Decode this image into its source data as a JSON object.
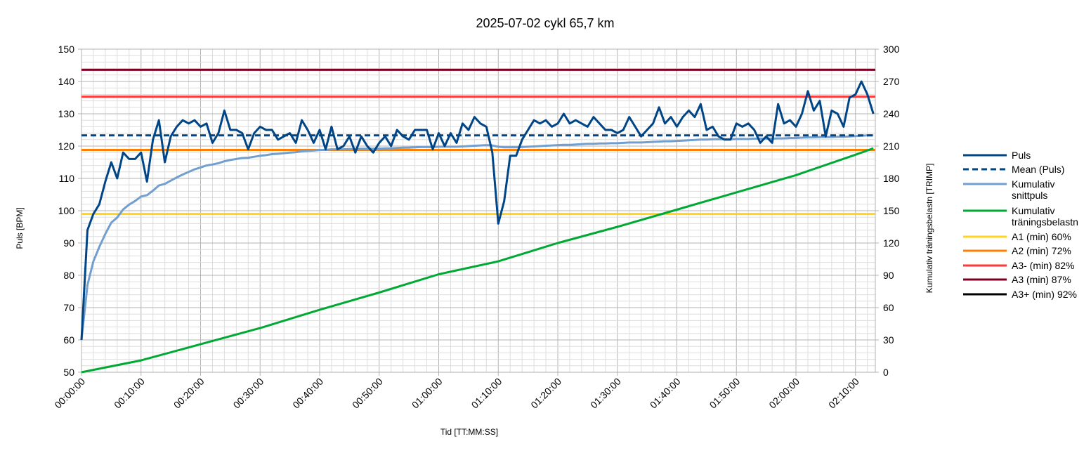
{
  "chart_data": {
    "type": "line",
    "title": "2025-07-02 cykl 65,7 km",
    "xlabel": "Tid [TT:MM:SS]",
    "ylabel": "Puls [BPM]",
    "y2label": "Kumulativ träningsbelastn [TRIMP]",
    "xlim": [
      0,
      8000
    ],
    "ylim": [
      50,
      150
    ],
    "y2lim": [
      0,
      300
    ],
    "x_ticks": [
      "00:00:00",
      "00:10:00",
      "00:20:00",
      "00:30:00",
      "00:40:00",
      "00:50:00",
      "01:00:00",
      "01:10:00",
      "01:20:00",
      "01:30:00",
      "01:40:00",
      "01:50:00",
      "02:00:00",
      "02:10:00"
    ],
    "y_ticks": [
      "50",
      "60",
      "70",
      "80",
      "90",
      "100",
      "110",
      "120",
      "130",
      "140",
      "150"
    ],
    "y2_ticks": [
      "0",
      "30",
      "60",
      "90",
      "120",
      "150",
      "180",
      "210",
      "240",
      "270",
      "300"
    ],
    "grid": true,
    "legend_position": "right",
    "series": [
      {
        "name": "Puls",
        "axis": "left",
        "color": "#004586",
        "style": "solid",
        "x": [
          0,
          60,
          120,
          180,
          240,
          300,
          360,
          420,
          480,
          540,
          600,
          660,
          720,
          780,
          840,
          900,
          960,
          1020,
          1080,
          1140,
          1200,
          1260,
          1320,
          1380,
          1440,
          1500,
          1560,
          1620,
          1680,
          1740,
          1800,
          1860,
          1920,
          1980,
          2040,
          2100,
          2160,
          2220,
          2280,
          2340,
          2400,
          2460,
          2520,
          2580,
          2640,
          2700,
          2760,
          2820,
          2880,
          2940,
          3000,
          3060,
          3120,
          3180,
          3240,
          3300,
          3360,
          3420,
          3480,
          3540,
          3600,
          3660,
          3720,
          3780,
          3840,
          3900,
          3960,
          4020,
          4080,
          4140,
          4200,
          4260,
          4320,
          4380,
          4440,
          4500,
          4560,
          4620,
          4680,
          4740,
          4800,
          4860,
          4920,
          4980,
          5040,
          5100,
          5160,
          5220,
          5280,
          5340,
          5400,
          5460,
          5520,
          5580,
          5640,
          5700,
          5760,
          5820,
          5880,
          5940,
          6000,
          6060,
          6120,
          6180,
          6240,
          6300,
          6360,
          6420,
          6480,
          6540,
          6600,
          6660,
          6720,
          6780,
          6840,
          6900,
          6960,
          7020,
          7080,
          7140,
          7200,
          7260,
          7320,
          7380,
          7440,
          7500,
          7560,
          7620,
          7680,
          7740,
          7800,
          7860,
          7920,
          7980
        ],
        "values": [
          60,
          94,
          99,
          102,
          109,
          115,
          110,
          118,
          116,
          116,
          118,
          109,
          122,
          128,
          115,
          123,
          126,
          128,
          127,
          128,
          126,
          127,
          121,
          124,
          131,
          125,
          125,
          124,
          119,
          124,
          126,
          125,
          125,
          122,
          123,
          124,
          121,
          128,
          125,
          121,
          125,
          119,
          126,
          119,
          120,
          123,
          118,
          123,
          120,
          118,
          121,
          123,
          120,
          125,
          123,
          122,
          125,
          125,
          125,
          119,
          124,
          120,
          124,
          121,
          127,
          125,
          129,
          127,
          126,
          118,
          96,
          103,
          117,
          117,
          122,
          125,
          128,
          127,
          128,
          126,
          127,
          130,
          127,
          128,
          127,
          126,
          129,
          127,
          125,
          125,
          124,
          125,
          129,
          126,
          123,
          125,
          127,
          132,
          127,
          129,
          126,
          129,
          131,
          129,
          133,
          125,
          126,
          123,
          122,
          122,
          127,
          126,
          127,
          125,
          121,
          123,
          121,
          133,
          127,
          128,
          126,
          130,
          137,
          131,
          134,
          123,
          131,
          130,
          126,
          135,
          136,
          140,
          136,
          130
        ]
      },
      {
        "name": "Mean (Puls)",
        "axis": "left",
        "color": "#004586",
        "style": "dashed",
        "x": [
          0,
          7980
        ],
        "values": [
          123.3,
          123.3
        ]
      },
      {
        "name": "Kumulativ snittpuls",
        "axis": "left",
        "color": "#729fcf",
        "style": "solid",
        "x": [
          0,
          60,
          120,
          180,
          240,
          300,
          360,
          420,
          480,
          540,
          600,
          660,
          720,
          780,
          840,
          900,
          960,
          1020,
          1080,
          1140,
          1200,
          1260,
          1320,
          1380,
          1440,
          1500,
          1560,
          1620,
          1680,
          1740,
          1800,
          1860,
          1920,
          1980,
          2040,
          2100,
          2160,
          2220,
          2280,
          2340,
          2400,
          2460,
          2520,
          2580,
          2640,
          2700,
          2760,
          2820,
          2880,
          2940,
          3000,
          3060,
          3120,
          3180,
          3240,
          3300,
          3360,
          3420,
          3480,
          3540,
          3600,
          3660,
          3720,
          3780,
          3840,
          3900,
          3960,
          4020,
          4080,
          4140,
          4200,
          4260,
          4320,
          4380,
          4440,
          4500,
          4560,
          4620,
          4680,
          4740,
          4800,
          4860,
          4920,
          4980,
          5040,
          5100,
          5160,
          5220,
          5280,
          5340,
          5400,
          5460,
          5520,
          5580,
          5640,
          5700,
          5760,
          5820,
          5880,
          5940,
          6000,
          6060,
          6120,
          6180,
          6240,
          6300,
          6360,
          6420,
          6480,
          6540,
          6600,
          6660,
          6720,
          6780,
          6840,
          6900,
          6960,
          7020,
          7080,
          7140,
          7200,
          7260,
          7320,
          7380,
          7440,
          7500,
          7560,
          7620,
          7680,
          7740,
          7800,
          7860,
          7920,
          7980
        ],
        "values": [
          60,
          77.0,
          84.3,
          88.8,
          92.8,
          96.3,
          97.9,
          100.4,
          101.9,
          103.0,
          104.4,
          104.8,
          106.2,
          107.8,
          108.3,
          109.3,
          110.3,
          111.2,
          112.0,
          112.8,
          113.4,
          114.0,
          114.3,
          114.7,
          115.3,
          115.7,
          116.0,
          116.3,
          116.4,
          116.7,
          117.0,
          117.2,
          117.5,
          117.6,
          117.8,
          118.0,
          118.1,
          118.4,
          118.5,
          118.6,
          118.8,
          118.8,
          119.0,
          119.0,
          119.0,
          119.1,
          119.1,
          119.2,
          119.2,
          119.2,
          119.2,
          119.3,
          119.3,
          119.4,
          119.5,
          119.5,
          119.6,
          119.7,
          119.7,
          119.7,
          119.8,
          119.8,
          119.8,
          119.8,
          119.9,
          120.0,
          120.1,
          120.2,
          120.3,
          120.2,
          119.8,
          119.6,
          119.6,
          119.6,
          119.7,
          119.8,
          119.9,
          120.0,
          120.1,
          120.2,
          120.3,
          120.4,
          120.4,
          120.5,
          120.6,
          120.7,
          120.7,
          120.8,
          120.8,
          120.9,
          120.9,
          121.0,
          121.1,
          121.1,
          121.1,
          121.2,
          121.3,
          121.4,
          121.5,
          121.5,
          121.6,
          121.7,
          121.8,
          121.9,
          122.0,
          122.0,
          122.1,
          122.1,
          122.1,
          122.1,
          122.2,
          122.2,
          122.2,
          122.3,
          122.3,
          122.3,
          122.3,
          122.4,
          122.4,
          122.5,
          122.5,
          122.6,
          122.7,
          122.7,
          122.8,
          122.8,
          122.8,
          122.9,
          122.9,
          123.0,
          123.1,
          123.2,
          123.3,
          123.3
        ]
      },
      {
        "name": "Kumulativ träningsbelastn",
        "axis": "right",
        "color": "#00a933",
        "style": "solid",
        "x": [
          0,
          600,
          1200,
          1800,
          2400,
          3000,
          3600,
          4200,
          4800,
          5400,
          6000,
          6600,
          7200,
          7800,
          7980
        ],
        "values": [
          0,
          11,
          26,
          41,
          58,
          74,
          91,
          103,
          120,
          135,
          151,
          167,
          183,
          202,
          208
        ]
      },
      {
        "name": "A1 (min) 60%",
        "axis": "left",
        "color": "#ffd320",
        "style": "solid",
        "x": [
          0,
          8000
        ],
        "values": [
          99,
          99
        ]
      },
      {
        "name": "A2 (min) 72%",
        "axis": "left",
        "color": "#ff8000",
        "style": "solid",
        "x": [
          0,
          8000
        ],
        "values": [
          118.8,
          118.8
        ]
      },
      {
        "name": "A3- (min) 82%",
        "axis": "left",
        "color": "#ff3838",
        "style": "solid",
        "x": [
          0,
          8000
        ],
        "values": [
          135.3,
          135.3
        ]
      },
      {
        "name": "A3 (min) 87%",
        "axis": "left",
        "color": "#7e0021",
        "style": "solid",
        "x": [
          0,
          8000
        ],
        "values": [
          143.6,
          143.6
        ]
      },
      {
        "name": "A3+ (min) 92%",
        "axis": "left",
        "color": "#000000",
        "style": "solid",
        "x": [],
        "values": []
      }
    ],
    "legend": [
      {
        "lines": [
          "Puls"
        ],
        "color": "#004586",
        "style": "solid"
      },
      {
        "lines": [
          "Mean (Puls)"
        ],
        "color": "#004586",
        "style": "dashed"
      },
      {
        "lines": [
          "Kumulativ",
          "snittpuls"
        ],
        "color": "#729fcf",
        "style": "solid"
      },
      {
        "lines": [
          "Kumulativ",
          "träningsbelastn"
        ],
        "color": "#00a933",
        "style": "solid"
      },
      {
        "lines": [
          "A1 (min) 60%"
        ],
        "color": "#ffd320",
        "style": "solid"
      },
      {
        "lines": [
          "A2 (min) 72%"
        ],
        "color": "#ff8000",
        "style": "solid"
      },
      {
        "lines": [
          "A3- (min) 82%"
        ],
        "color": "#ff3838",
        "style": "solid"
      },
      {
        "lines": [
          "A3 (min) 87%"
        ],
        "color": "#7e0021",
        "style": "solid"
      },
      {
        "lines": [
          "A3+ (min) 92%"
        ],
        "color": "#000000",
        "style": "solid"
      }
    ]
  }
}
